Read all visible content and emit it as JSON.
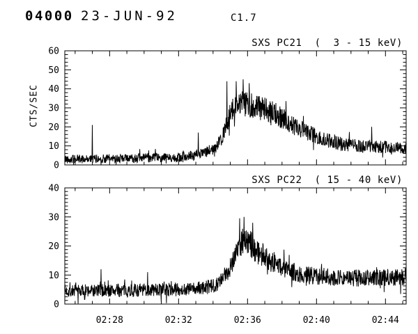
{
  "header": {
    "sequence_id": "04000",
    "date": "23-JUN-92",
    "flare_class": "C1.7"
  },
  "colors": {
    "background": "#ffffff",
    "foreground": "#000000"
  },
  "chart_data": [
    {
      "type": "line",
      "title": "SXS PC21  (  3 - 15 keV)",
      "ylabel": "CTS/SEC",
      "ylim": [
        0,
        60
      ],
      "yticks": [
        0,
        10,
        20,
        30,
        40,
        50,
        60
      ],
      "y_minor_step": 2,
      "xlim_minutes": [
        25.4,
        45.2
      ],
      "xtick_minutes": [
        28,
        32,
        36,
        40,
        44
      ],
      "xtick_labels": [
        "02:28",
        "02:32",
        "02:36",
        "02:40",
        "02:44"
      ],
      "x_minor_step_minutes": 1,
      "x_labels_visible": false,
      "grid": false,
      "description": "X-ray lightcurve, quiet baseline ~3 cts/s, flare rise at 02:34, peak ~45 cts/s near 02:35-02:36, slow decay to ~9 cts/s by 02:45",
      "profile_t_minutes": [
        25.4,
        29.0,
        32.0,
        33.4,
        34.2,
        34.6,
        35.0,
        35.5,
        36.0,
        37.0,
        37.8,
        38.6,
        39.5,
        40.3,
        41.5,
        42.5,
        43.5,
        45.2
      ],
      "profile_cts": [
        3.0,
        3.5,
        4.0,
        6.0,
        9.0,
        16.0,
        27.0,
        33.0,
        32.0,
        29.0,
        26.0,
        21.0,
        17.0,
        13.5,
        11.0,
        10.0,
        9.5,
        9.0
      ],
      "spikes": [
        [
          27.0,
          21
        ],
        [
          33.15,
          17
        ],
        [
          34.8,
          44
        ],
        [
          35.35,
          44
        ],
        [
          35.75,
          45
        ],
        [
          36.1,
          43
        ],
        [
          43.2,
          20
        ]
      ],
      "noise_base": 1.8,
      "noise_scale": 0.16,
      "seed": 42,
      "samples": 1180
    },
    {
      "type": "line",
      "title": "SXS PC22  ( 15 - 40 keV)",
      "ylabel": "",
      "ylim": [
        0,
        40
      ],
      "yticks": [
        0,
        10,
        20,
        30,
        40
      ],
      "y_minor_step": 1.25,
      "xlim_minutes": [
        25.4,
        45.2
      ],
      "xtick_minutes": [
        28,
        32,
        36,
        40,
        44
      ],
      "xtick_labels": [
        "02:28",
        "02:32",
        "02:36",
        "02:40",
        "02:44"
      ],
      "x_minor_step_minutes": 1,
      "x_labels_visible": true,
      "grid": false,
      "description": "Hard X-ray lightcurve, baseline ~4.5 cts/s, rise at 02:34.5, peak ~30 cts/s near 02:36, decay to elevated ~9 cts/s tail",
      "profile_t_minutes": [
        25.4,
        30.0,
        33.0,
        33.9,
        34.5,
        35.0,
        35.4,
        35.7,
        36.1,
        36.6,
        37.2,
        38.2,
        39.2,
        40.5,
        42.0,
        43.5,
        45.2
      ],
      "profile_cts": [
        4.5,
        4.8,
        5.2,
        6.0,
        8.0,
        13.0,
        19.0,
        22.0,
        21.0,
        18.0,
        15.5,
        12.0,
        10.0,
        9.5,
        9.0,
        9.0,
        9.5
      ],
      "spikes": [
        [
          27.5,
          12
        ],
        [
          30.2,
          11
        ],
        [
          35.55,
          29.5
        ],
        [
          35.8,
          30
        ],
        [
          36.3,
          28
        ]
      ],
      "noise_base": 1.6,
      "noise_scale": 0.15,
      "seed": 7,
      "samples": 1180
    }
  ]
}
